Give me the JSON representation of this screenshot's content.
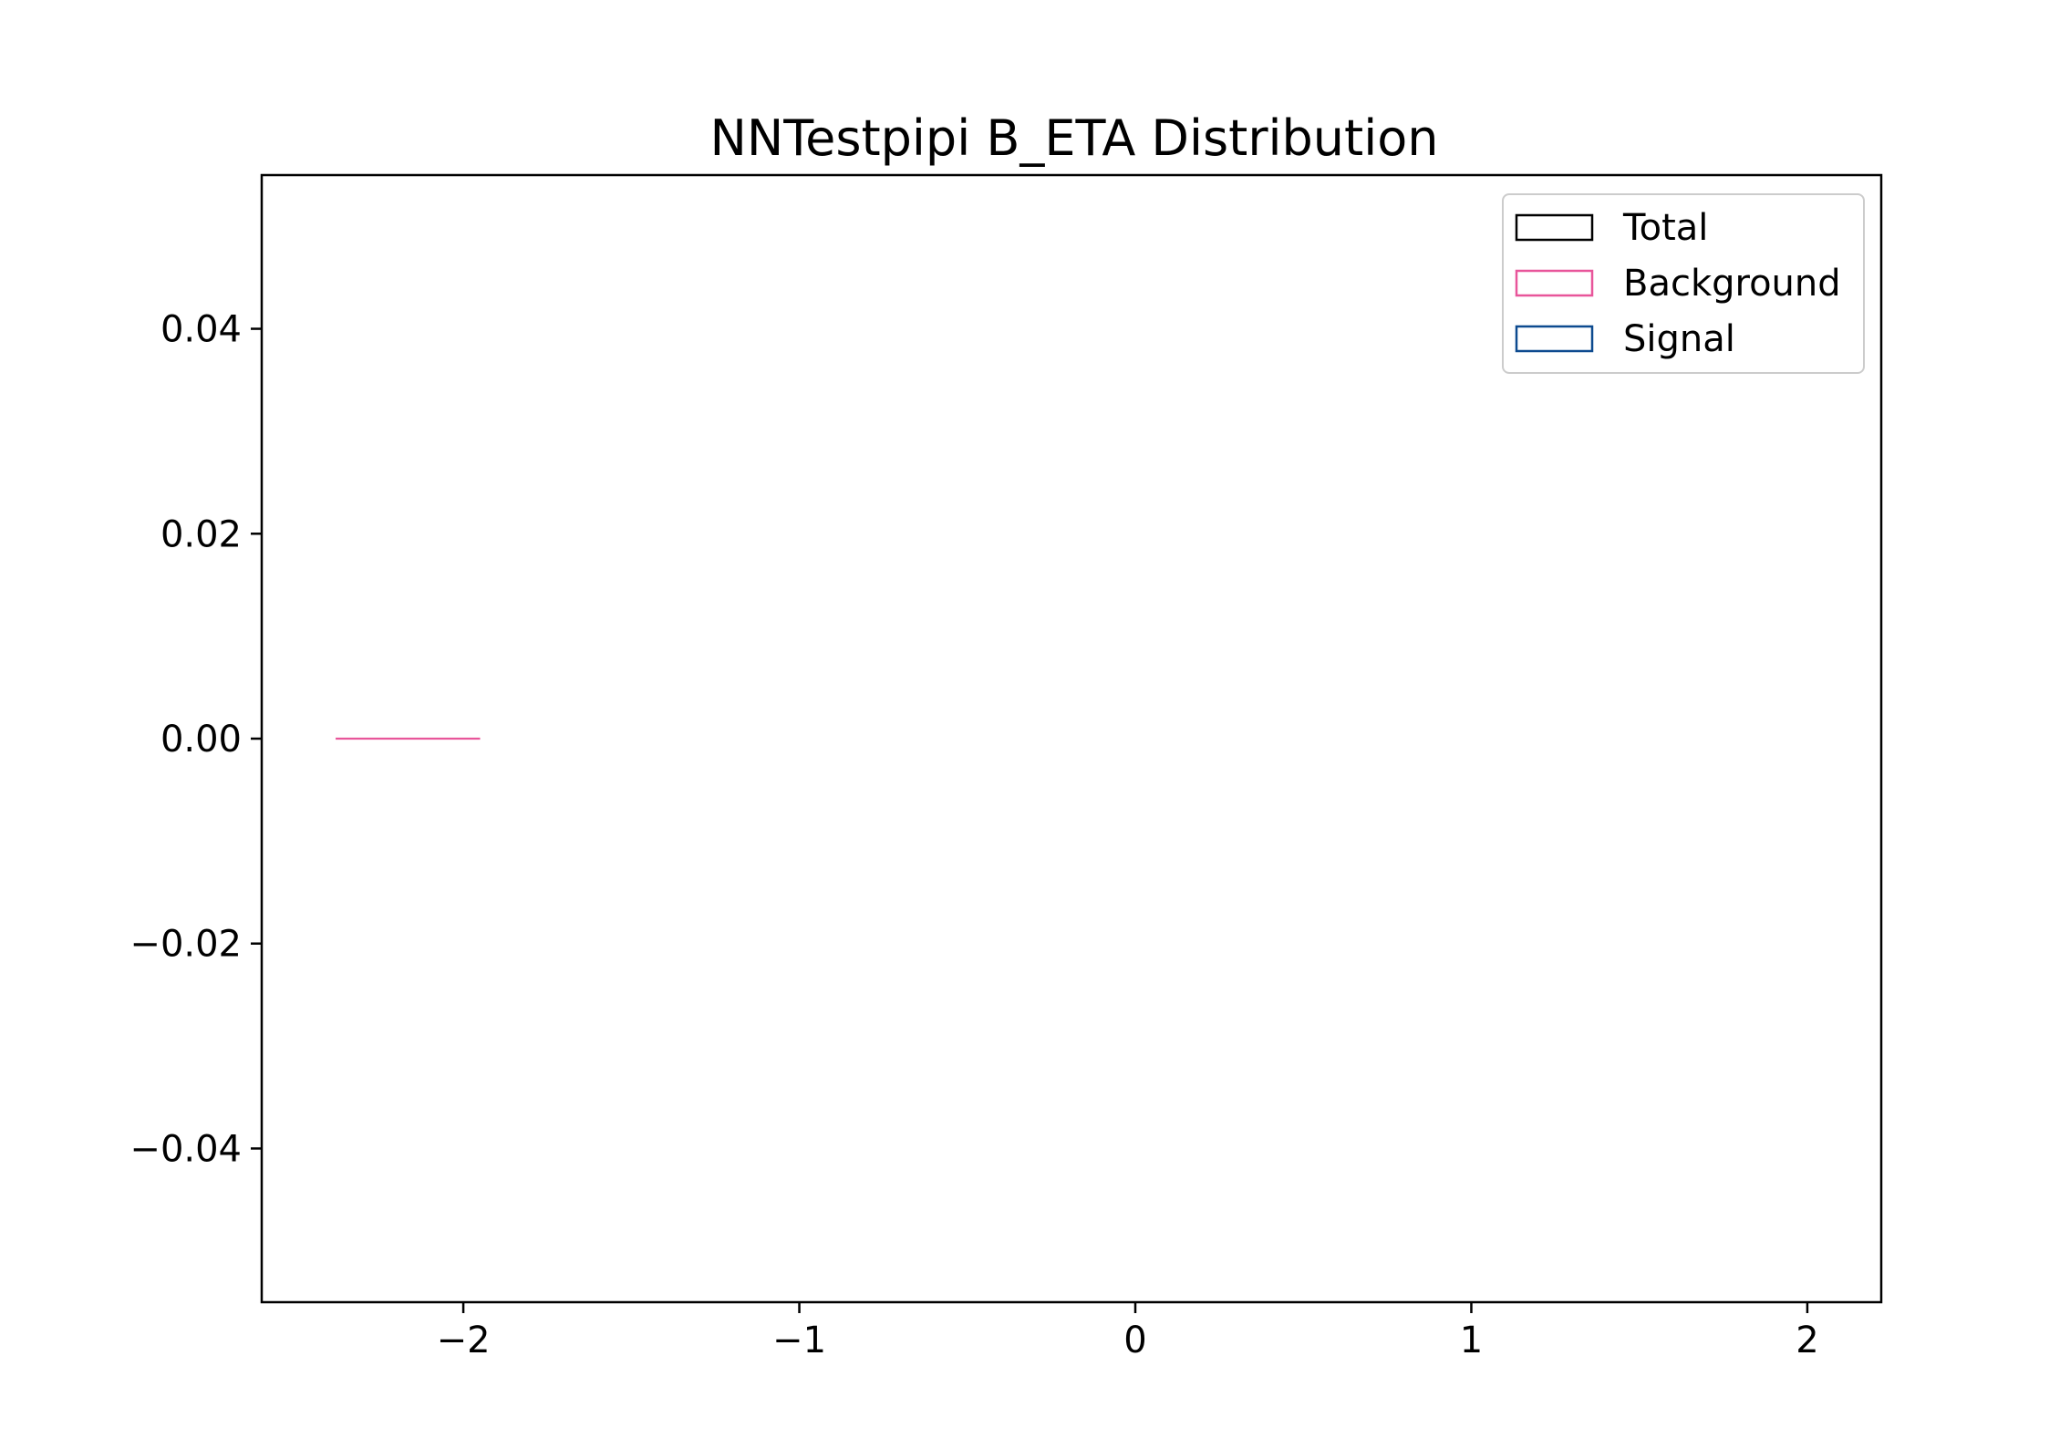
{
  "chart_data": {
    "type": "histogram",
    "title": "NNTestpipi B_ETA Distribution",
    "xlabel": "",
    "ylabel": "",
    "xlim": [
      -2.6,
      2.22
    ],
    "ylim": [
      -0.055,
      0.055
    ],
    "x_ticks": [
      {
        "value": -2,
        "label": "−2"
      },
      {
        "value": -1,
        "label": "−1"
      },
      {
        "value": 0,
        "label": "0"
      },
      {
        "value": 1,
        "label": "1"
      },
      {
        "value": 2,
        "label": "2"
      }
    ],
    "y_ticks": [
      {
        "value": 0.04,
        "label": "0.04"
      },
      {
        "value": 0.02,
        "label": "0.02"
      },
      {
        "value": 0.0,
        "label": "0.00"
      },
      {
        "value": -0.02,
        "label": "−0.02"
      },
      {
        "value": -0.04,
        "label": "−0.04"
      }
    ],
    "grid": false,
    "legend_position": "top-right",
    "series": [
      {
        "name": "Total",
        "color": "#000000",
        "segments": []
      },
      {
        "name": "Background",
        "color": "#e8559a",
        "segments": [
          {
            "x_start": -2.38,
            "x_end": -1.95,
            "y": 0.0
          }
        ]
      },
      {
        "name": "Signal",
        "color": "#0d4a8f",
        "segments": []
      }
    ]
  }
}
